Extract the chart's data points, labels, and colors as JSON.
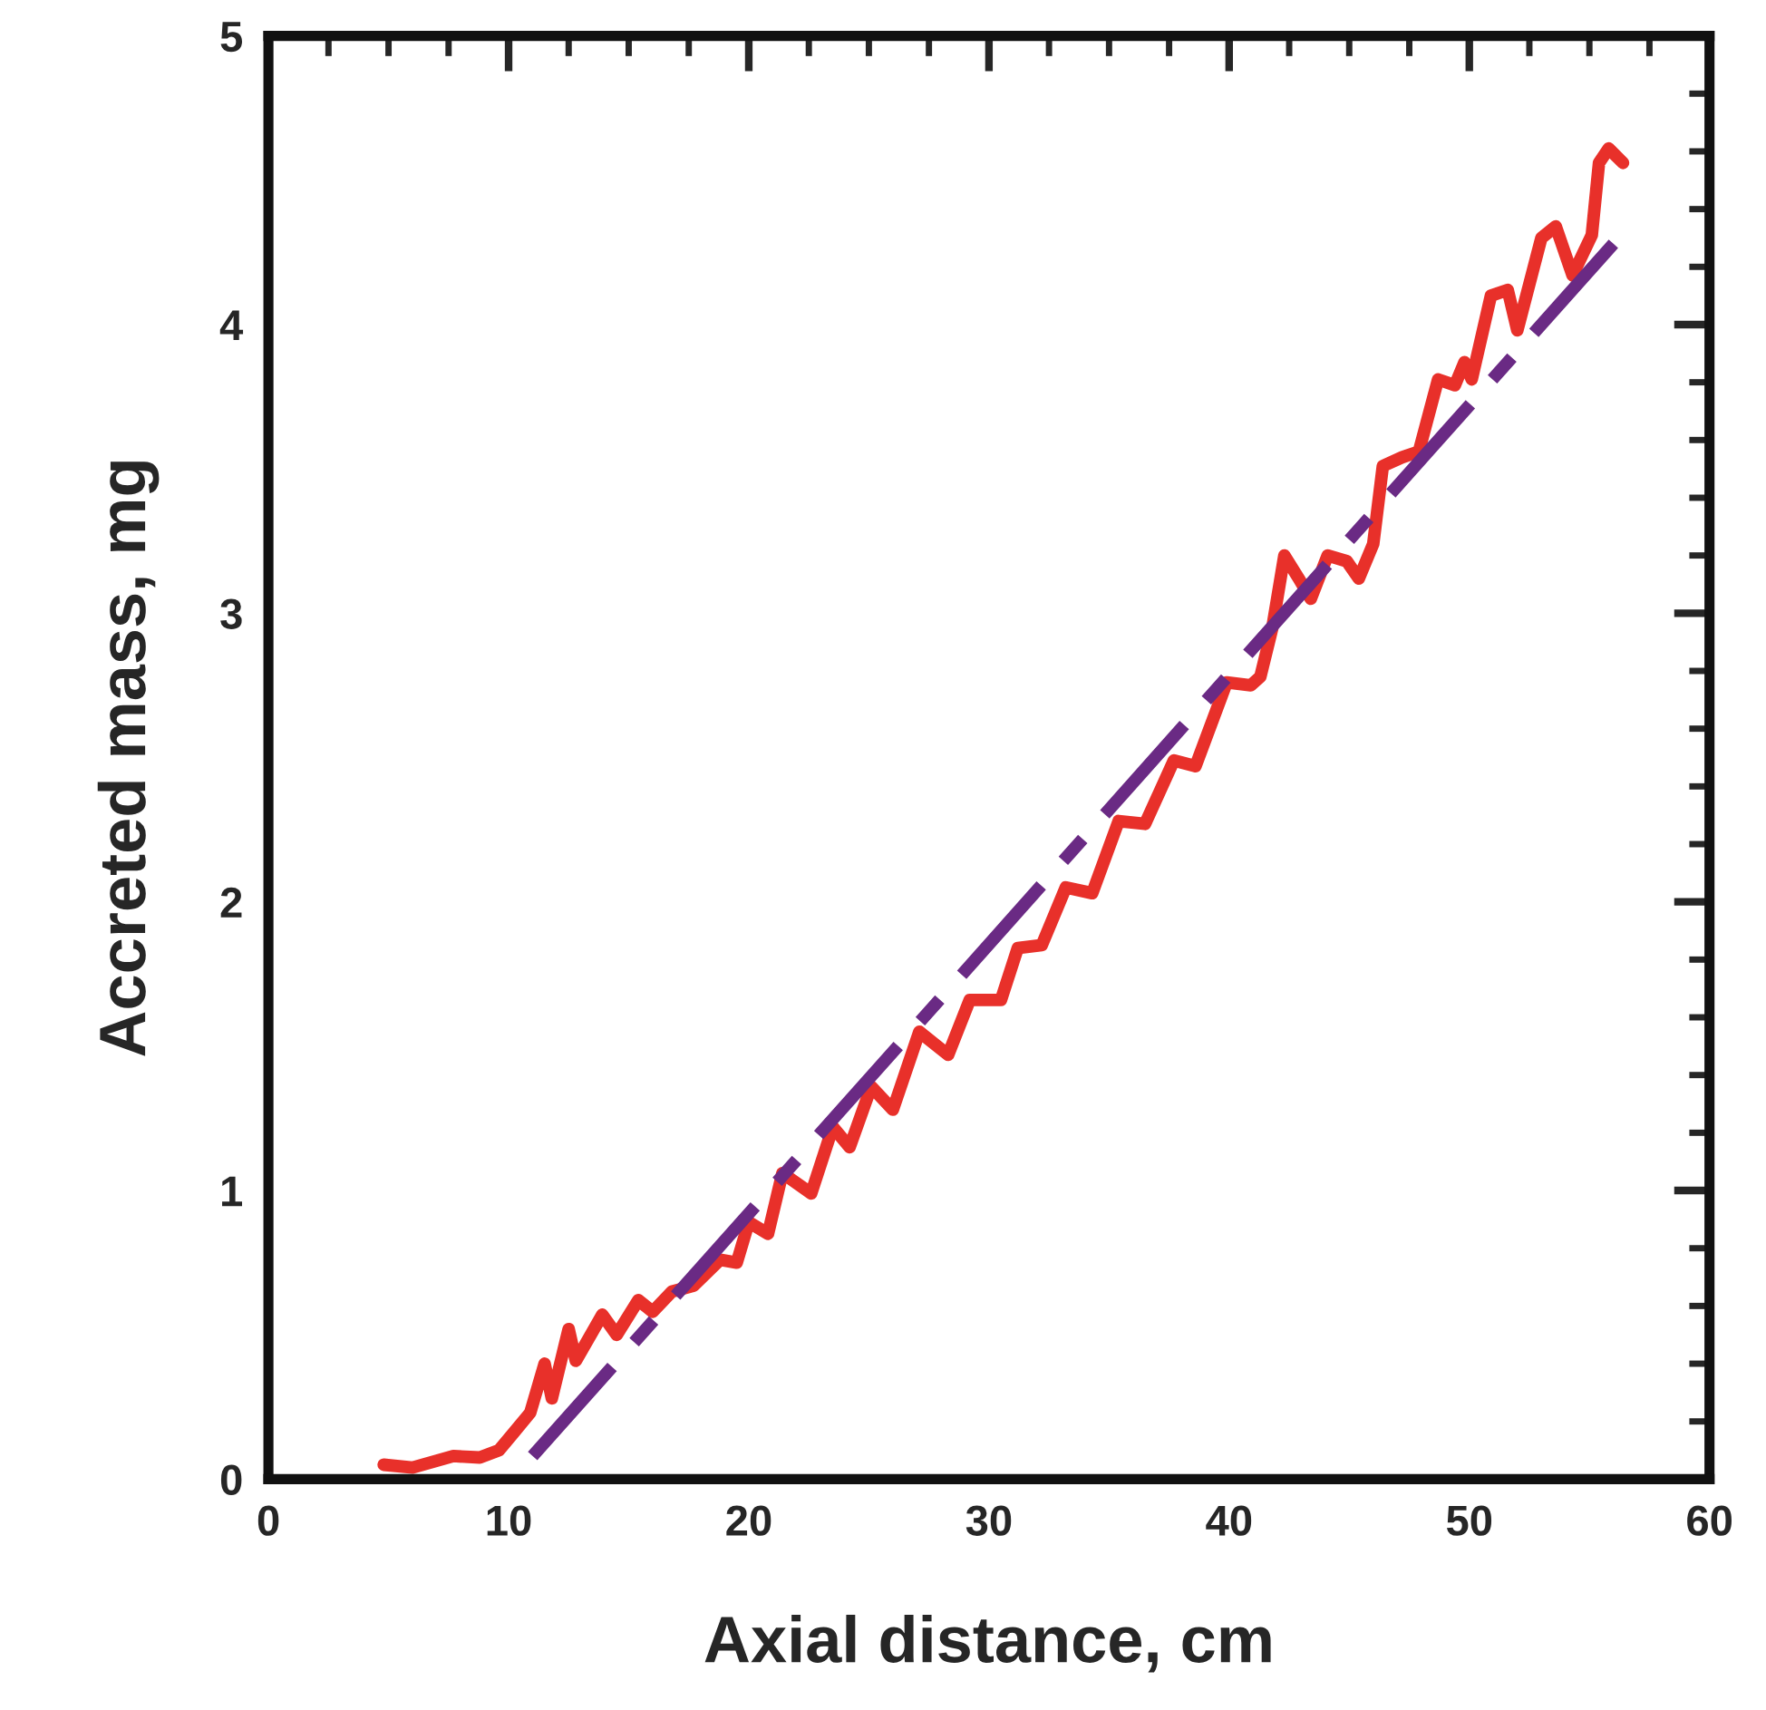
{
  "chart_data": {
    "type": "line",
    "xlabel": "Axial distance, cm",
    "ylabel": "Accreted mass, mg",
    "xlim": [
      0,
      60
    ],
    "xticks": [
      0,
      10,
      20,
      30,
      40,
      50,
      60
    ],
    "ylim": [
      0,
      5
    ],
    "yticks": [
      0,
      1,
      2,
      3,
      4,
      5
    ],
    "grid": false,
    "series": [
      {
        "color": "#e8302a",
        "line_style": "solid",
        "x": [
          4.8,
          6.0,
          7.7,
          8.8,
          9.6,
          10.2,
          10.9,
          11.5,
          11.8,
          12.5,
          12.8,
          13.9,
          14.5,
          15.4,
          16.0,
          16.8,
          17.7,
          18.8,
          19.5,
          20.0,
          20.8,
          21.4,
          22.6,
          23.5,
          24.2,
          25.1,
          26.0,
          27.1,
          28.3,
          29.2,
          30.5,
          31.2,
          32.2,
          33.2,
          34.3,
          35.4,
          36.5,
          37.7,
          38.6,
          39.9,
          40.9,
          41.3,
          41.8,
          42.3,
          42.9,
          43.4,
          44.1,
          44.9,
          45.4,
          46.0,
          46.4,
          47.2,
          47.9,
          48.7,
          49.4,
          49.8,
          50.1,
          50.9,
          51.6,
          52.0,
          53.0,
          53.6,
          54.3,
          55.1,
          55.4,
          55.8,
          56.4
        ],
        "values": [
          0.05,
          0.04,
          0.08,
          0.075,
          0.1,
          0.16,
          0.23,
          0.4,
          0.28,
          0.52,
          0.41,
          0.57,
          0.5,
          0.62,
          0.58,
          0.65,
          0.67,
          0.76,
          0.75,
          0.89,
          0.85,
          1.06,
          0.99,
          1.22,
          1.15,
          1.36,
          1.28,
          1.55,
          1.47,
          1.66,
          1.66,
          1.84,
          1.85,
          2.05,
          2.03,
          2.28,
          2.27,
          2.49,
          2.47,
          2.76,
          2.75,
          2.78,
          2.95,
          3.2,
          3.12,
          3.05,
          3.2,
          3.18,
          3.12,
          3.24,
          3.51,
          3.54,
          3.56,
          3.81,
          3.79,
          3.87,
          3.81,
          4.1,
          4.12,
          3.98,
          4.3,
          4.34,
          4.17,
          4.31,
          4.56,
          4.61,
          4.56
        ]
      },
      {
        "color": "#6a2a84",
        "line_style": "dashed",
        "x": [
          11,
          56
        ],
        "values": [
          0.08,
          4.28
        ]
      }
    ]
  }
}
